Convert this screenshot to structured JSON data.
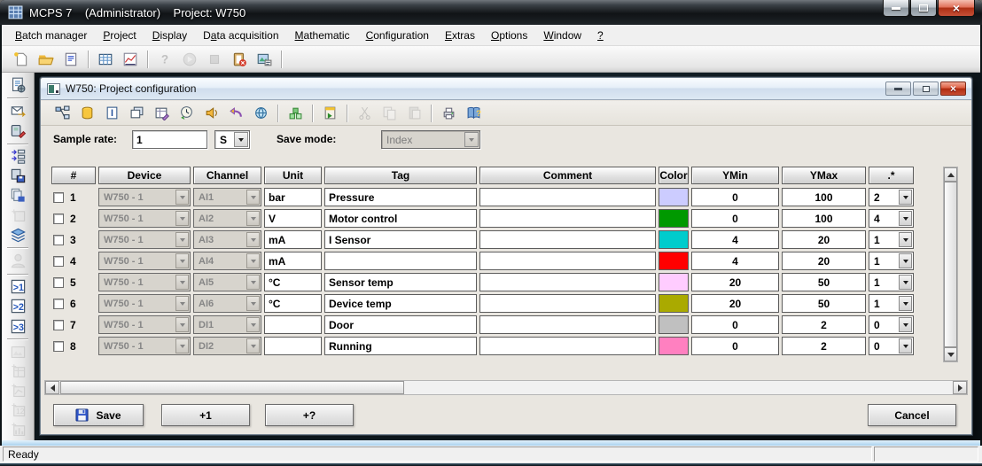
{
  "titlebar": {
    "title": "MCPS 7    (Administrator)    Project: W750"
  },
  "menubar": {
    "items": [
      {
        "label": "Batch manager",
        "underline": 0
      },
      {
        "label": "Project",
        "underline": 0
      },
      {
        "label": "Display",
        "underline": 0
      },
      {
        "label": "Data acquisition",
        "underline": 1
      },
      {
        "label": "Mathematic",
        "underline": 0
      },
      {
        "label": "Configuration",
        "underline": 0
      },
      {
        "label": "Extras",
        "underline": 0
      },
      {
        "label": "Options",
        "underline": 0
      },
      {
        "label": "Window",
        "underline": 0
      },
      {
        "label": "?",
        "underline": 0
      }
    ]
  },
  "main_toolbar": {
    "items": [
      {
        "name": "new-project-icon",
        "enabled": true
      },
      {
        "name": "open-project-icon",
        "enabled": true
      },
      {
        "name": "project-list-icon",
        "enabled": true
      },
      {
        "sep": true
      },
      {
        "name": "table-view-icon",
        "enabled": true
      },
      {
        "name": "chart-view-icon",
        "enabled": true
      },
      {
        "sep": true
      },
      {
        "name": "help-icon",
        "enabled": false
      },
      {
        "name": "start-icon",
        "enabled": false
      },
      {
        "name": "stop-icon",
        "enabled": false
      },
      {
        "name": "clipboard-delete-icon",
        "enabled": true
      },
      {
        "name": "export-image-icon",
        "enabled": true
      },
      {
        "sep": true
      }
    ]
  },
  "left_toolbar": {
    "items": [
      {
        "name": "project-settings-icon",
        "enabled": true
      },
      {
        "sep": true
      },
      {
        "name": "send-icon",
        "enabled": true
      },
      {
        "name": "device-config-icon",
        "enabled": true
      },
      {
        "sep": true
      },
      {
        "name": "transfer-list-icon",
        "enabled": true
      },
      {
        "name": "device-save-icon",
        "enabled": true
      },
      {
        "name": "copy-save-icon",
        "enabled": true
      },
      {
        "name": "add-device-icon",
        "enabled": false
      },
      {
        "name": "layers-icon",
        "enabled": true
      },
      {
        "sep": true
      },
      {
        "name": "user-icon",
        "enabled": false
      },
      {
        "sep": true
      },
      {
        "name": "view-1-icon",
        "enabled": true
      },
      {
        "name": "view-2-icon",
        "enabled": true
      },
      {
        "name": "view-3-icon",
        "enabled": true
      },
      {
        "sep": true
      },
      {
        "name": "image-icon",
        "enabled": false
      },
      {
        "name": "add-table-icon",
        "enabled": false
      },
      {
        "name": "add-chart-icon",
        "enabled": false
      },
      {
        "name": "add-values-icon",
        "enabled": false
      },
      {
        "name": "add-bar-icon",
        "enabled": false
      }
    ]
  },
  "inner_window": {
    "title": "W750: Project configuration",
    "toolbar": {
      "items": [
        {
          "name": "channel-structure-icon",
          "enabled": true
        },
        {
          "name": "database-icon",
          "enabled": true
        },
        {
          "name": "info-icon",
          "enabled": true
        },
        {
          "name": "windows-icon",
          "enabled": true
        },
        {
          "name": "table-edit-icon",
          "enabled": true
        },
        {
          "name": "history-icon",
          "enabled": true
        },
        {
          "name": "alarm-icon",
          "enabled": true
        },
        {
          "name": "undo-icon",
          "enabled": true
        },
        {
          "name": "network-icon",
          "enabled": true
        },
        {
          "sep": true
        },
        {
          "name": "blocks-icon",
          "enabled": true
        },
        {
          "sep": true
        },
        {
          "name": "export-notebook-icon",
          "enabled": true
        },
        {
          "sep": true
        },
        {
          "name": "cut-icon",
          "enabled": false
        },
        {
          "name": "copy-icon",
          "enabled": false
        },
        {
          "name": "paste-icon",
          "enabled": false
        },
        {
          "sep": true
        },
        {
          "name": "print-icon",
          "enabled": true
        },
        {
          "name": "help-book-icon",
          "enabled": true
        }
      ]
    },
    "form": {
      "sample_rate_label": "Sample rate:",
      "sample_rate_value": "1",
      "sample_rate_unit": "S",
      "save_mode_label": "Save mode:",
      "save_mode_value": "Index"
    },
    "table": {
      "headers": [
        "#",
        "Device",
        "Channel",
        "Unit",
        "Tag",
        "Comment",
        "Color",
        "YMin",
        "YMax",
        ".*"
      ],
      "rows": [
        {
          "num": "1",
          "device": "W750 - 1",
          "channel": "AI1",
          "unit": "bar",
          "tag": "Pressure",
          "comment": "",
          "color": "#CCCCFF",
          "ymin": "0",
          "ymax": "100",
          "axis": "2"
        },
        {
          "num": "2",
          "device": "W750 - 1",
          "channel": "AI2",
          "unit": "V",
          "tag": "Motor control",
          "comment": "",
          "color": "#009900",
          "ymin": "0",
          "ymax": "100",
          "axis": "4"
        },
        {
          "num": "3",
          "device": "W750 - 1",
          "channel": "AI3",
          "unit": "mA",
          "tag": "I Sensor",
          "comment": "",
          "color": "#00CCCC",
          "ymin": "4",
          "ymax": "20",
          "axis": "1"
        },
        {
          "num": "4",
          "device": "W750 - 1",
          "channel": "AI4",
          "unit": "mA",
          "tag": "",
          "comment": "",
          "color": "#FF0000",
          "ymin": "4",
          "ymax": "20",
          "axis": "1"
        },
        {
          "num": "5",
          "device": "W750 - 1",
          "channel": "AI5",
          "unit": "°C",
          "tag": "Sensor temp",
          "comment": "",
          "color": "#FFCCFF",
          "ymin": "20",
          "ymax": "50",
          "axis": "1"
        },
        {
          "num": "6",
          "device": "W750 - 1",
          "channel": "AI6",
          "unit": "°C",
          "tag": "Device temp",
          "comment": "",
          "color": "#AAAA00",
          "ymin": "20",
          "ymax": "50",
          "axis": "1"
        },
        {
          "num": "7",
          "device": "W750 - 1",
          "channel": "DI1",
          "unit": "",
          "tag": "Door",
          "comment": "",
          "color": "#C0C0C0",
          "ymin": "0",
          "ymax": "2",
          "axis": "0"
        },
        {
          "num": "8",
          "device": "W750 - 1",
          "channel": "DI2",
          "unit": "",
          "tag": "Running",
          "comment": "",
          "color": "#FF80C0",
          "ymin": "0",
          "ymax": "2",
          "axis": "0"
        }
      ]
    },
    "buttons": {
      "save": "Save",
      "add_one": "+1",
      "add_query": "+?",
      "cancel": "Cancel"
    }
  },
  "statusbar": {
    "text": "Ready"
  }
}
